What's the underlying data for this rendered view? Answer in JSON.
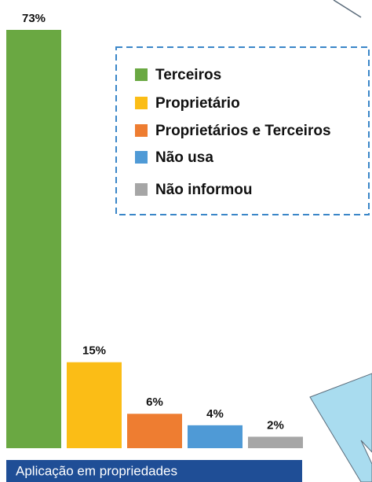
{
  "chart_data": {
    "type": "bar",
    "categories": [
      "Terceiros",
      "Proprietário",
      "Proprietários e Terceiros",
      "Não usa",
      "Não informou"
    ],
    "values": [
      73,
      15,
      6,
      4,
      2
    ],
    "value_labels": [
      "73%",
      "15%",
      "6%",
      "4%",
      "2%"
    ],
    "colors": [
      "#6aa842",
      "#fbbd16",
      "#ee7d31",
      "#4f9ad6",
      "#a6a6a6"
    ],
    "xlabel": "Aplicação em propriedades",
    "legend": "top-right"
  }
}
